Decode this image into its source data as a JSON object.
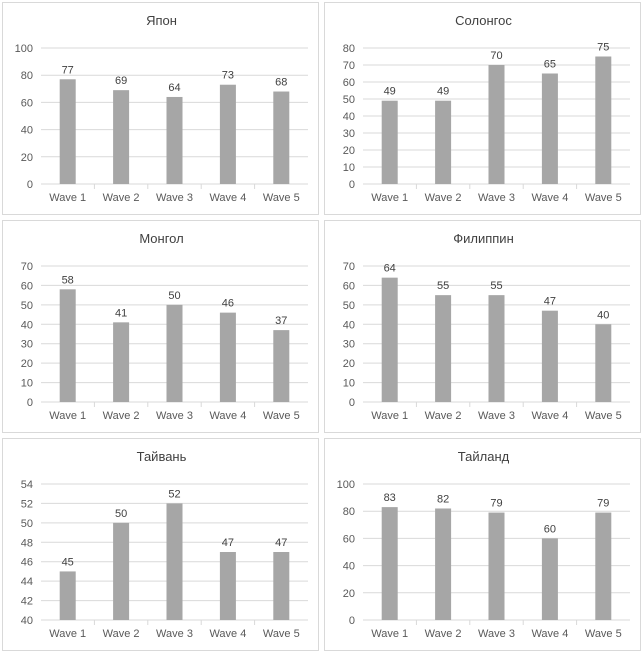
{
  "chart_data": [
    {
      "type": "bar",
      "title": "Япон",
      "categories": [
        "Wave 1",
        "Wave 2",
        "Wave 3",
        "Wave 4",
        "Wave 5"
      ],
      "values": [
        77,
        69,
        64,
        73,
        68
      ],
      "ylim": [
        0,
        100
      ],
      "yticks": [
        0,
        20,
        40,
        60,
        80,
        100
      ],
      "bar_color": "#a6a6a6",
      "grid": true
    },
    {
      "type": "bar",
      "title": "Солонгос",
      "categories": [
        "Wave 1",
        "Wave 2",
        "Wave 3",
        "Wave 4",
        "Wave 5"
      ],
      "values": [
        49,
        49,
        70,
        65,
        75
      ],
      "ylim": [
        0,
        80
      ],
      "yticks": [
        0,
        10,
        20,
        30,
        40,
        50,
        60,
        70,
        80
      ],
      "bar_color": "#a6a6a6",
      "grid": true
    },
    {
      "type": "bar",
      "title": "Монгол",
      "categories": [
        "Wave 1",
        "Wave 2",
        "Wave 3",
        "Wave 4",
        "Wave 5"
      ],
      "values": [
        58,
        41,
        50,
        46,
        37
      ],
      "ylim": [
        0,
        70
      ],
      "yticks": [
        0,
        10,
        20,
        30,
        40,
        50,
        60,
        70
      ],
      "bar_color": "#a6a6a6",
      "grid": true
    },
    {
      "type": "bar",
      "title": "Филиппин",
      "categories": [
        "Wave 1",
        "Wave 2",
        "Wave 3",
        "Wave 4",
        "Wave 5"
      ],
      "values": [
        64,
        55,
        55,
        47,
        40
      ],
      "ylim": [
        0,
        70
      ],
      "yticks": [
        0,
        10,
        20,
        30,
        40,
        50,
        60,
        70
      ],
      "bar_color": "#a6a6a6",
      "grid": true
    },
    {
      "type": "bar",
      "title": "Тайвань",
      "categories": [
        "Wave 1",
        "Wave 2",
        "Wave 3",
        "Wave 4",
        "Wave 5"
      ],
      "values": [
        45,
        50,
        52,
        47,
        47
      ],
      "ylim": [
        40,
        54
      ],
      "yticks": [
        40,
        42,
        44,
        46,
        48,
        50,
        52,
        54
      ],
      "bar_color": "#a6a6a6",
      "grid": true
    },
    {
      "type": "bar",
      "title": "Тайланд",
      "categories": [
        "Wave 1",
        "Wave 2",
        "Wave 3",
        "Wave 4",
        "Wave 5"
      ],
      "values": [
        83,
        82,
        79,
        60,
        79
      ],
      "ylim": [
        0,
        100
      ],
      "yticks": [
        0,
        20,
        40,
        60,
        80,
        100
      ],
      "bar_color": "#a6a6a6",
      "grid": true
    }
  ]
}
